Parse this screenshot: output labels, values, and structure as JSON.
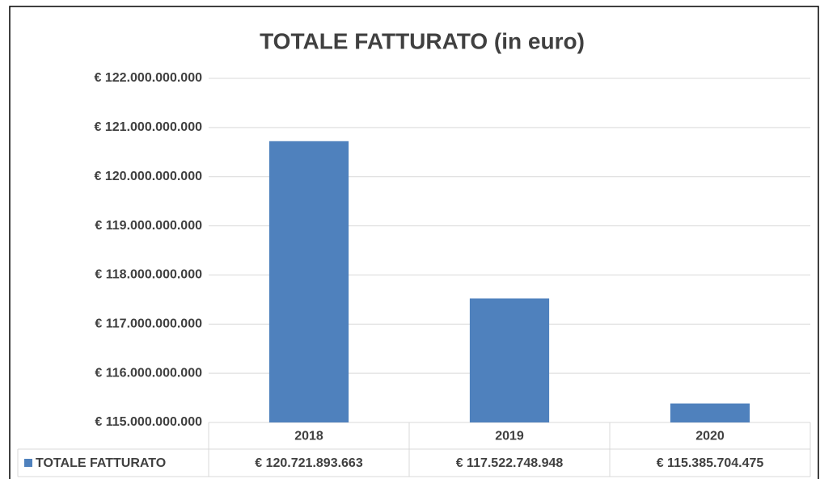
{
  "chart_data": {
    "type": "bar",
    "title": "TOTALE FATTURATO (in euro)",
    "categories": [
      "2018",
      "2019",
      "2020"
    ],
    "series": [
      {
        "name": "TOTALE FATTURATO",
        "color": "#4f81bd",
        "values": [
          120721893663,
          117522748948,
          115385704475
        ],
        "value_labels": [
          "€ 120.721.893.663",
          "€ 117.522.748.948",
          "€ 115.385.704.475"
        ]
      }
    ],
    "ylim": [
      115000000000,
      122000000000
    ],
    "yticks": [
      {
        "value": 115000000000,
        "label": "€ 115.000.000.000"
      },
      {
        "value": 116000000000,
        "label": "€ 116.000.000.000"
      },
      {
        "value": 117000000000,
        "label": "€ 117.000.000.000"
      },
      {
        "value": 118000000000,
        "label": "€ 118.000.000.000"
      },
      {
        "value": 119000000000,
        "label": "€ 119.000.000.000"
      },
      {
        "value": 120000000000,
        "label": "€ 120.000.000.000"
      },
      {
        "value": 121000000000,
        "label": "€ 121.000.000.000"
      },
      {
        "value": 122000000000,
        "label": "€ 122.000.000.000"
      }
    ],
    "grid": true,
    "data_table": true
  }
}
